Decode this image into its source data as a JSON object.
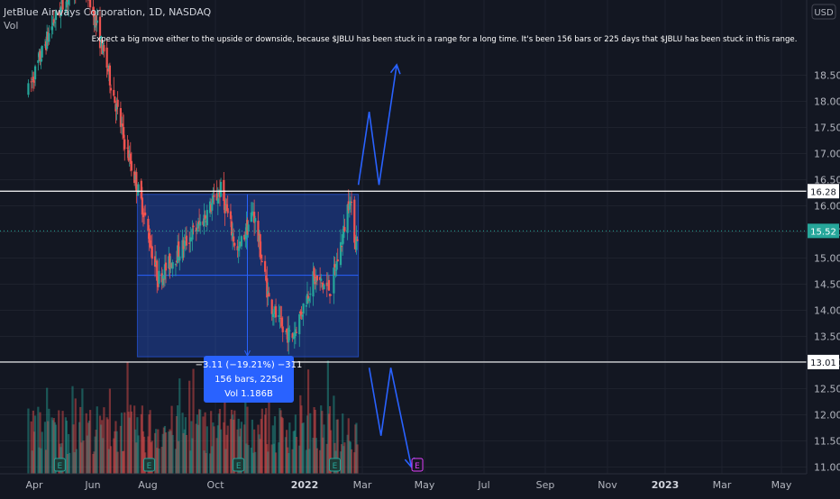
{
  "header": {
    "symbol_title": "JetBlue Airways Corporation, 1D, NASDAQ",
    "volume_label": "Vol",
    "currency": "USD"
  },
  "annotation": "Expect a big move either to the upside or downside, because $JBLU has been stuck in a range for a long time. It's been 156 bars or 225 days that $JBLU has been stuck in this range.",
  "measure": {
    "line1": "−3.11 (−19.21%) −311",
    "line2": "156 bars, 225d",
    "line3": "Vol 1.186B"
  },
  "earnings_marker": "E",
  "colors": {
    "background": "#131722",
    "up": "#26a69a",
    "down": "#ef5350",
    "range_box": "#2962ff",
    "measure_bg": "#2962ff",
    "arrow": "#2962ff",
    "current_price": "#26a69a",
    "earnings_upcoming": "#e040fb"
  },
  "chart_data": {
    "type": "candlestick",
    "title": "JetBlue Airways Corporation, 1D, NASDAQ",
    "x_ticks": [
      "Apr",
      "Jun",
      "Aug",
      "Oct",
      "2022",
      "Mar",
      "May",
      "Jul",
      "Sep",
      "Nov",
      "2023",
      "Mar",
      "May"
    ],
    "y_ticks": [
      11.0,
      11.5,
      12.0,
      12.5,
      13.0,
      13.5,
      14.0,
      14.5,
      15.0,
      15.5,
      16.0,
      16.5,
      17.0,
      17.5,
      18.0,
      18.5
    ],
    "ylim": [
      10.85,
      19.1
    ],
    "price_levels": {
      "resistance": 16.28,
      "support": 13.01,
      "current": 15.52
    },
    "range_box": {
      "start": "2021-07-15",
      "end": "2022-02-25",
      "high": 16.22,
      "low": 13.11,
      "mid": 14.67
    },
    "earnings_dates": [
      "2021-04-27",
      "2021-07-27",
      "2021-10-26",
      "2022-02-01",
      "2022-04-26"
    ],
    "key_points": [
      {
        "date": "2021-03-26",
        "price": 18.2
      },
      {
        "date": "2021-04-20",
        "price": 19.5
      },
      {
        "date": "2021-05-20",
        "price": 20.5
      },
      {
        "date": "2021-06-15",
        "price": 18.6
      },
      {
        "date": "2021-07-01",
        "price": 17.3
      },
      {
        "date": "2021-07-20",
        "price": 16.0
      },
      {
        "date": "2021-08-05",
        "price": 14.6
      },
      {
        "date": "2021-08-25",
        "price": 15.1
      },
      {
        "date": "2021-09-15",
        "price": 15.6
      },
      {
        "date": "2021-10-08",
        "price": 16.3
      },
      {
        "date": "2021-10-25",
        "price": 15.1
      },
      {
        "date": "2021-11-10",
        "price": 15.9
      },
      {
        "date": "2021-11-26",
        "price": 14.2
      },
      {
        "date": "2021-12-10",
        "price": 13.6
      },
      {
        "date": "2021-12-20",
        "price": 13.5
      },
      {
        "date": "2022-01-10",
        "price": 14.6
      },
      {
        "date": "2022-01-28",
        "price": 14.4
      },
      {
        "date": "2022-02-10",
        "price": 15.5
      },
      {
        "date": "2022-02-16",
        "price": 16.2
      },
      {
        "date": "2022-02-22",
        "price": 15.3
      },
      {
        "date": "2022-02-25",
        "price": 15.52
      }
    ],
    "projection_up": [
      {
        "date": "2022-02-25",
        "price": 16.4
      },
      {
        "date": "2022-03-08",
        "price": 17.8
      },
      {
        "date": "2022-03-18",
        "price": 16.4
      },
      {
        "date": "2022-04-05",
        "price": 18.7
      }
    ],
    "projection_down": [
      {
        "date": "2022-03-08",
        "price": 12.9
      },
      {
        "date": "2022-03-20",
        "price": 11.6
      },
      {
        "date": "2022-03-30",
        "price": 12.9
      },
      {
        "date": "2022-04-20",
        "price": 11.0
      }
    ]
  }
}
